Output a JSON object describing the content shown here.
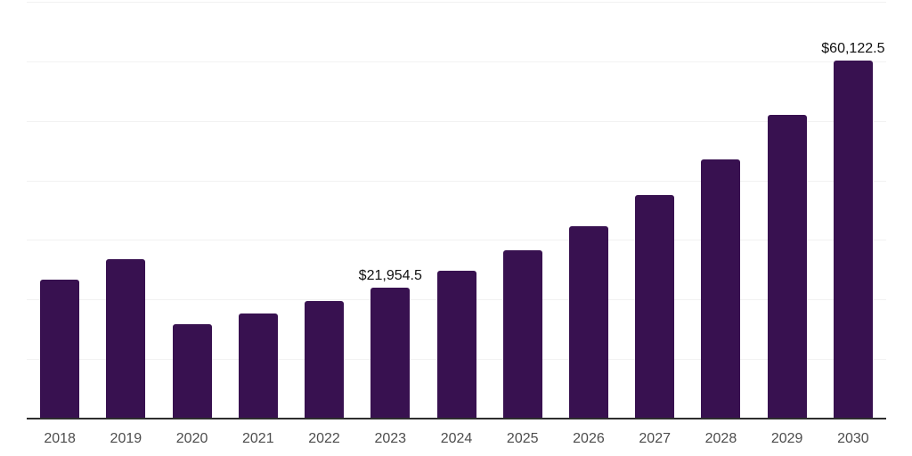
{
  "chart_data": {
    "type": "bar",
    "title": "",
    "xlabel": "",
    "ylabel": "",
    "categories": [
      "2018",
      "2019",
      "2020",
      "2021",
      "2022",
      "2023",
      "2024",
      "2025",
      "2026",
      "2027",
      "2028",
      "2029",
      "2030"
    ],
    "values": [
      23400,
      26800,
      15800,
      17600,
      19700,
      21954.5,
      24900,
      28300,
      32300,
      37500,
      43500,
      51000,
      60122.5
    ],
    "point_labels": [
      "",
      "",
      "",
      "",
      "",
      "$21,954.5",
      "",
      "",
      "",
      "",
      "",
      "",
      "$60,122.5"
    ],
    "ylim": [
      0,
      70000
    ],
    "gridline_step": 10000,
    "grid": true,
    "legend": "none",
    "colors": {
      "bar": "#381150",
      "axis_line": "#2e2e2e",
      "gridline": "#f2f2f2",
      "x_tick_label": "#4d4d4d",
      "point_label": "#111111",
      "background": "#ffffff"
    }
  }
}
